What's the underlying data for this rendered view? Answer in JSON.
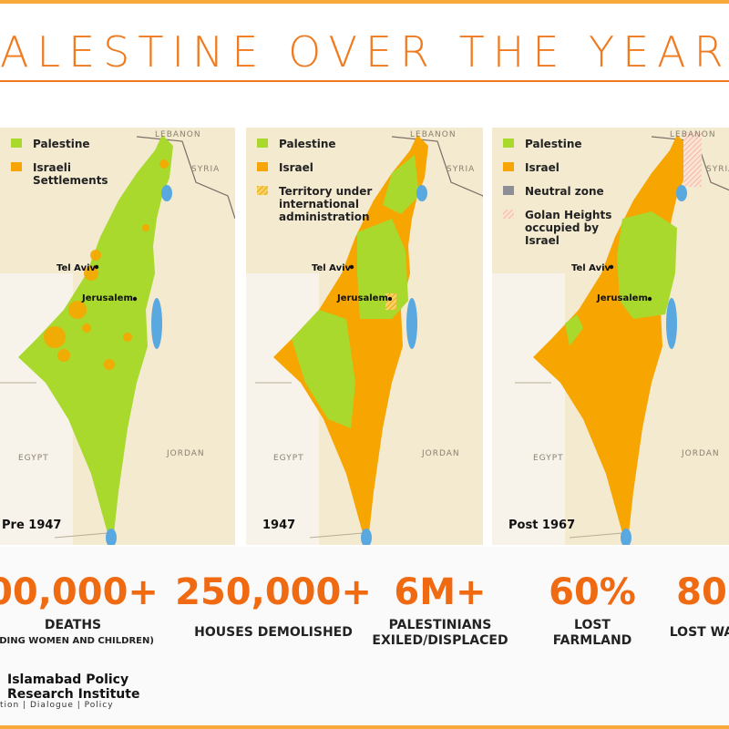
{
  "header": {
    "title": "ALESTINE OVER THE YEAR"
  },
  "maps": [
    {
      "label": "Pre 1947",
      "legend": [
        {
          "kind": "green",
          "lines": [
            "Palestine"
          ]
        },
        {
          "kind": "orange",
          "lines": [
            "Israeli",
            "Settlements"
          ]
        }
      ],
      "places": [
        "LEBANON",
        "SYRIA",
        "EGYPT",
        "JORDAN"
      ],
      "cities": [
        "Tel Aviv",
        "Jerusalem"
      ]
    },
    {
      "label": "1947",
      "legend": [
        {
          "kind": "green",
          "lines": [
            "Palestine"
          ]
        },
        {
          "kind": "orange",
          "lines": [
            "Israel"
          ]
        },
        {
          "kind": "hatch",
          "lines": [
            "Territory under",
            "international",
            "administration"
          ]
        }
      ],
      "places": [
        "LEBANON",
        "SYRIA",
        "EGYPT",
        "JORDAN"
      ],
      "cities": [
        "Tel Aviv",
        "Jerusalem"
      ]
    },
    {
      "label": "Post 1967",
      "legend": [
        {
          "kind": "green",
          "lines": [
            "Palestine"
          ]
        },
        {
          "kind": "orange",
          "lines": [
            "Israel"
          ]
        },
        {
          "kind": "gray",
          "lines": [
            "Neutral zone"
          ]
        },
        {
          "kind": "pink",
          "lines": [
            "Golan Heights",
            "occupied by",
            "Israel"
          ]
        }
      ],
      "places": [
        "LEBANON",
        "SYRIA",
        "EGYPT",
        "JORDAN"
      ],
      "cities": [
        "Tel Aviv",
        "Jerusalem"
      ]
    }
  ],
  "stats": [
    {
      "number": "00,000+",
      "lines": [
        "DEATHS"
      ],
      "small": "UDING WOMEN AND CHILDREN)"
    },
    {
      "number": "250,000+",
      "lines": [
        "HOUSES DEMOLISHED"
      ]
    },
    {
      "number": "6M+",
      "lines": [
        "PALESTINIANS",
        "EXILED/DISPLACED"
      ]
    },
    {
      "number": "60%",
      "lines": [
        "LOST",
        "FARMLAND"
      ]
    },
    {
      "number": "80",
      "lines": [
        "LOST WA"
      ]
    }
  ],
  "footer": {
    "lines": [
      "Islamabad Policy",
      "Research Institute"
    ],
    "tagline": "tion | Dialogue | Policy"
  }
}
